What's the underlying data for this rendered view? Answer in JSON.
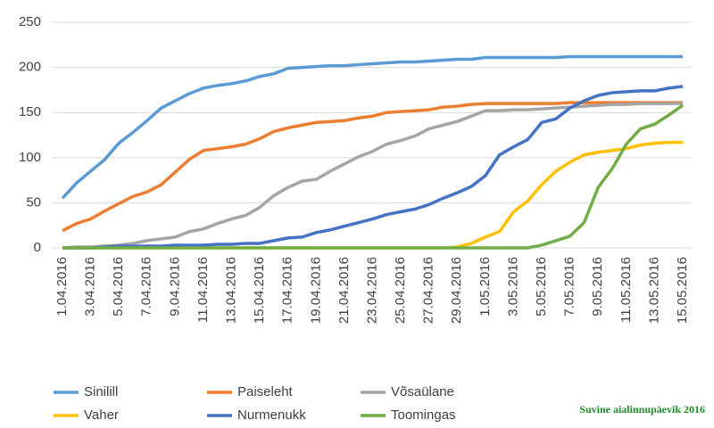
{
  "chart_data": {
    "type": "line",
    "categories": [
      "1.04.2016",
      null,
      "3.04.2016",
      null,
      "5.04.2016",
      null,
      "7.04.2016",
      null,
      "9.04.2016",
      null,
      "11.04.2016",
      null,
      "13.04.2016",
      null,
      "15.04.2016",
      null,
      "17.04.2016",
      null,
      "19.04.2016",
      null,
      "21.04.2016",
      null,
      "23.04.2016",
      null,
      "25.04.2016",
      null,
      "27.04.2016",
      null,
      "29.04.2016",
      null,
      "1.05.2016",
      null,
      "3.05.2016",
      null,
      "5.05.2016",
      null,
      "7.05.2016",
      null,
      "9.05.2016",
      null,
      "11.05.2016",
      null,
      "13.05.2016",
      null,
      "15.05.2016"
    ],
    "series": [
      {
        "name": "Sinilill",
        "color": "#5b9bd5",
        "values": [
          55,
          72,
          85,
          98,
          116,
          128,
          141,
          155,
          163,
          171,
          177,
          180,
          182,
          185,
          190,
          193,
          199,
          200,
          201,
          202,
          202,
          203,
          204,
          205,
          206,
          206,
          207,
          208,
          209,
          209,
          211,
          211,
          211,
          211,
          211,
          211,
          212,
          212,
          212,
          212,
          212,
          212,
          212,
          212,
          212
        ]
      },
      {
        "name": "Paiseleht",
        "color": "#ed7d31",
        "values": [
          19,
          27,
          32,
          41,
          49,
          57,
          62,
          70,
          84,
          98,
          108,
          110,
          112,
          115,
          121,
          129,
          133,
          136,
          139,
          140,
          141,
          144,
          146,
          150,
          151,
          152,
          153,
          156,
          157,
          159,
          160,
          160,
          160,
          160,
          160,
          160,
          161,
          161,
          161,
          161,
          161,
          161,
          161,
          161,
          161
        ]
      },
      {
        "name": "Võsaülane",
        "color": "#a5a5a5",
        "values": [
          0,
          1,
          1,
          2,
          3,
          5,
          8,
          10,
          12,
          18,
          21,
          27,
          32,
          36,
          45,
          58,
          67,
          74,
          76,
          85,
          93,
          101,
          107,
          115,
          119,
          124,
          132,
          136,
          140,
          146,
          152,
          152,
          153,
          153,
          154,
          155,
          156,
          157,
          158,
          159,
          159,
          160,
          160,
          160,
          160
        ]
      },
      {
        "name": "Vaher",
        "color": "#ffc000",
        "values": [
          0,
          0,
          0,
          0,
          0,
          0,
          0,
          0,
          0,
          0,
          0,
          0,
          0,
          0,
          0,
          0,
          0,
          0,
          0,
          0,
          0,
          0,
          0,
          0,
          0,
          0,
          0,
          0,
          1,
          5,
          12,
          18,
          40,
          52,
          70,
          85,
          95,
          103,
          106,
          108,
          110,
          114,
          116,
          117,
          117
        ]
      },
      {
        "name": "Nurmenukk",
        "color": "#4472c4",
        "values": [
          0,
          0,
          0,
          1,
          2,
          2,
          2,
          2,
          3,
          3,
          3,
          4,
          4,
          5,
          5,
          8,
          11,
          12,
          17,
          20,
          24,
          28,
          32,
          37,
          40,
          43,
          48,
          55,
          61,
          68,
          80,
          103,
          112,
          120,
          139,
          143,
          155,
          163,
          169,
          172,
          173,
          174,
          174,
          177,
          179
        ]
      },
      {
        "name": "Toomingas",
        "color": "#70ad47",
        "values": [
          0,
          0,
          0,
          0,
          0,
          0,
          0,
          0,
          0,
          0,
          0,
          0,
          0,
          0,
          0,
          0,
          0,
          0,
          0,
          0,
          0,
          0,
          0,
          0,
          0,
          0,
          0,
          0,
          0,
          0,
          0,
          0,
          0,
          0,
          3,
          8,
          13,
          28,
          67,
          88,
          115,
          132,
          137,
          147,
          158
        ]
      }
    ],
    "ylim": [
      0,
      250
    ],
    "yticks": [
      0,
      50,
      100,
      150,
      200,
      250
    ],
    "grid": true,
    "legend": "bottom",
    "annotation": "Suvine aialinnupäevik 2016"
  }
}
